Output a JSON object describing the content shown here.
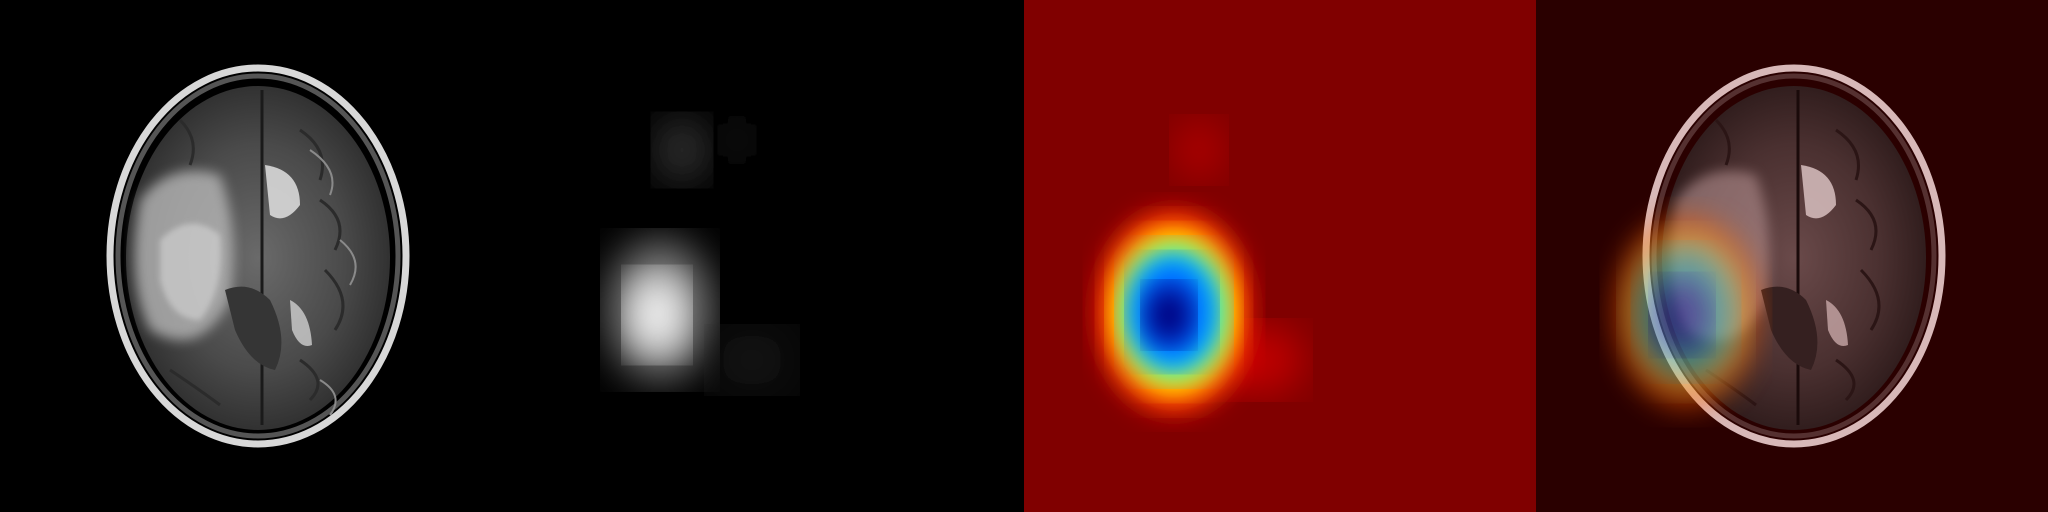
{
  "panels": [
    {
      "name": "brain-mri-panel",
      "role": "source axial T2 brain MRI slice"
    },
    {
      "name": "grayscale-attention-map-panel",
      "role": "grayscale saliency map"
    },
    {
      "name": "jet-colormap-heatmap-panel",
      "role": "jet colormap heatmap"
    },
    {
      "name": "heatmap-overlay-panel",
      "role": "heatmap blended onto MRI"
    }
  ],
  "colors": {
    "background": "#000000",
    "jet_low": "#800000",
    "jet_peak": "#00007f",
    "overlay_tint": "#2a0000"
  }
}
